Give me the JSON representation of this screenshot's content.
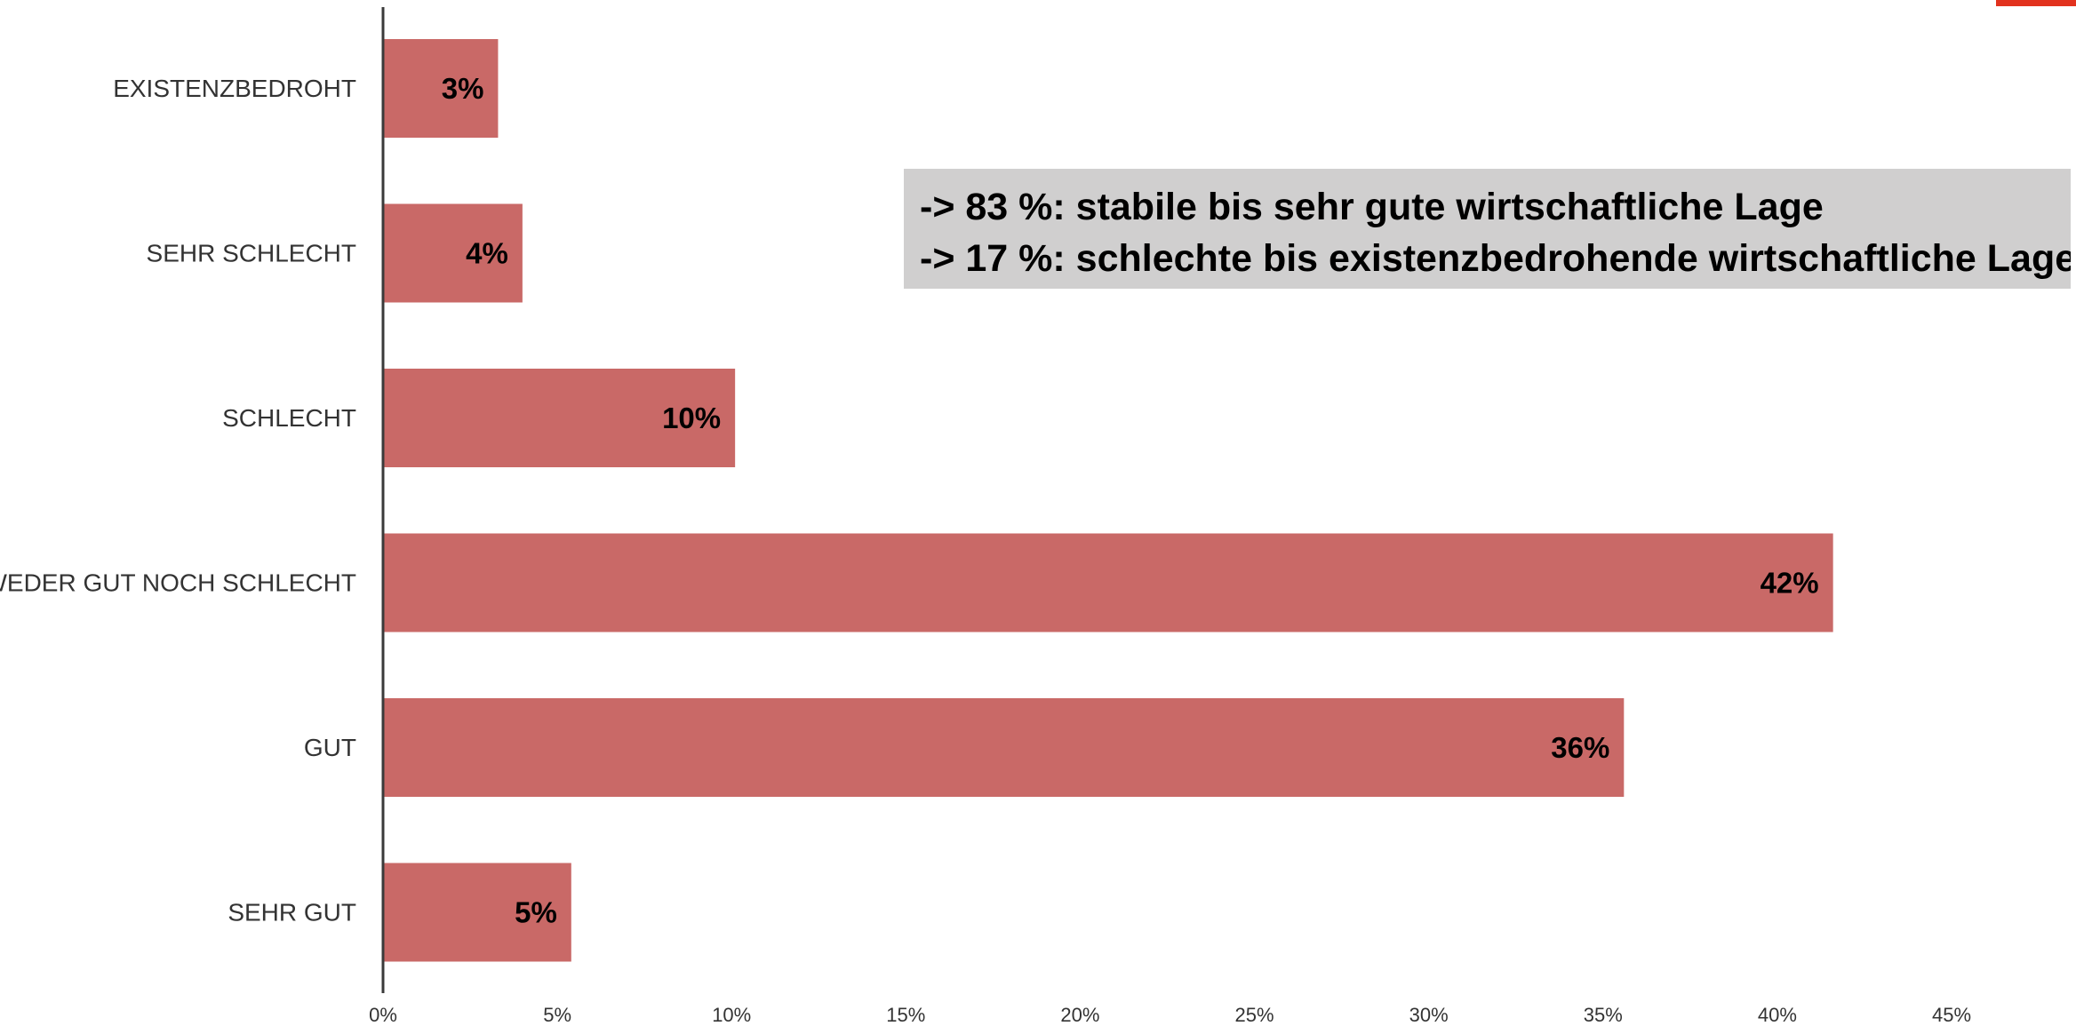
{
  "chart_data": {
    "type": "bar",
    "orientation": "horizontal",
    "categories": [
      "EXISTENZBEDROHT",
      "SEHR SCHLECHT",
      "SCHLECHT",
      "WEDER GUT NOCH SCHLECHT",
      "GUT",
      "SEHR GUT"
    ],
    "values": [
      3.3,
      4.0,
      10.1,
      41.6,
      35.6,
      5.4
    ],
    "data_labels": [
      "3%",
      "4%",
      "10%",
      "42%",
      "36%",
      "5%"
    ],
    "x_ticks": [
      "0%",
      "5%",
      "10%",
      "15%",
      "20%",
      "25%",
      "30%",
      "35%",
      "40%",
      "45%"
    ],
    "xlim": [
      0,
      45
    ],
    "x_unit": "%",
    "bar_color": "#c96967",
    "grid": false,
    "legend": "none",
    "title": "",
    "xlabel": "",
    "ylabel": ""
  },
  "callout": {
    "line1": "-> 83 %: stabile bis sehr gute wirtschaftliche Lage",
    "line2": "-> 17 %: schlechte bis existenzbedrohende wirtschaftliche Lage",
    "background": "#d0cfcf"
  },
  "accent_color": "#e2321e"
}
